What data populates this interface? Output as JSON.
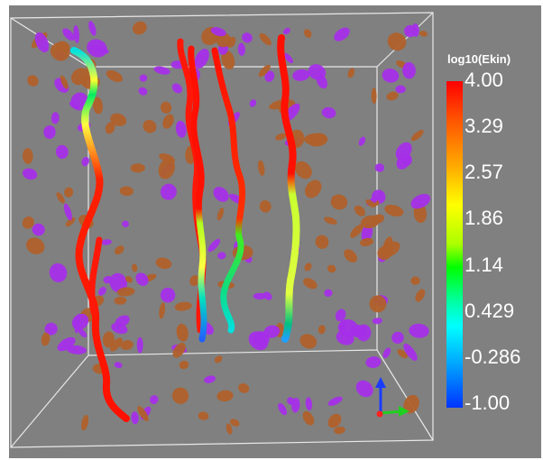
{
  "colorbar": {
    "title": "log10(Ekin)",
    "ticks": [
      "4.00",
      "3.29",
      "2.57",
      "1.86",
      "1.14",
      "0.429",
      "-0.286",
      "-1.00"
    ],
    "range": [
      -1.0,
      4.0
    ],
    "colors": [
      "#ff0000",
      "#ff5500",
      "#ffaa00",
      "#ffff00",
      "#aaff00",
      "#00ff00",
      "#00ffaa",
      "#00ffff",
      "#00aaff",
      "#0033ff"
    ]
  },
  "scene": {
    "background": "#808080",
    "blob_colors": [
      "#a52fe8",
      "#b0602a"
    ],
    "axes_icon_colors": [
      "#1a3cff",
      "#ff2020",
      "#20d020"
    ]
  }
}
